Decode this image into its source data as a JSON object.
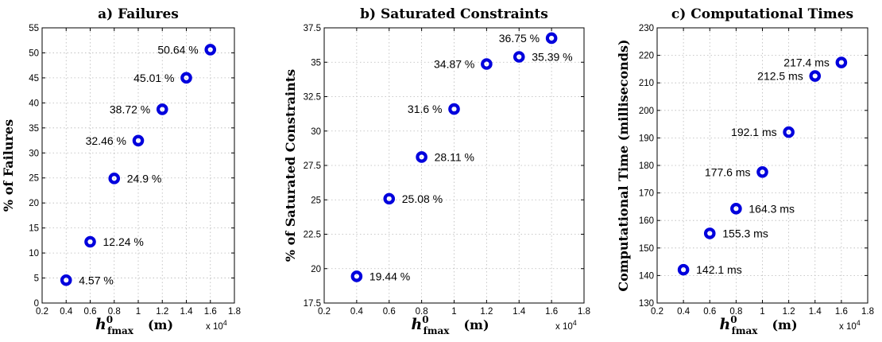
{
  "figure": {
    "x_multiplier": "x 10",
    "x_multiplier_exp": "4"
  },
  "chart_data": [
    {
      "type": "scatter",
      "title": "a)  Failures",
      "xlabel_main": "h",
      "xlabel_sup": "0",
      "xlabel_sub": "fmax",
      "xlabel_unit": "(m)",
      "ylabel": "%  of Failures",
      "xlim": [
        0.2,
        1.8
      ],
      "ylim": [
        0,
        55
      ],
      "xticks": [
        0.2,
        0.4,
        0.6,
        0.8,
        1,
        1.2,
        1.4,
        1.6,
        1.8
      ],
      "xtick_labels": [
        "0.2",
        "0.4",
        "0.6",
        "0.8",
        "1",
        "1.2",
        "1.4",
        "1.6",
        "1.8"
      ],
      "yticks": [
        0,
        5,
        10,
        15,
        20,
        25,
        30,
        35,
        40,
        45,
        50,
        55
      ],
      "ytick_labels": [
        "0",
        "5",
        "10",
        "15",
        "20",
        "25",
        "30",
        "35",
        "40",
        "45",
        "50",
        "55"
      ],
      "x": [
        0.4,
        0.6,
        0.8,
        1.0,
        1.2,
        1.4,
        1.6
      ],
      "y": [
        4.57,
        12.24,
        24.9,
        32.46,
        38.72,
        45.01,
        50.64
      ],
      "labels": [
        "4.57 %",
        "12.24 %",
        "24.9 %",
        "32.46 %",
        "38.72 %",
        "45.01 %",
        "50.64 %"
      ],
      "label_sides": [
        "right",
        "right",
        "right",
        "left",
        "left",
        "left",
        "left"
      ],
      "grid": true,
      "marker_color": "#0000dd"
    },
    {
      "type": "scatter",
      "title": "b)  Saturated Constraints",
      "xlabel_main": "h",
      "xlabel_sup": "0",
      "xlabel_sub": "fmax",
      "xlabel_unit": "(m)",
      "ylabel": "%  of Saturated Constraints",
      "xlim": [
        0.2,
        1.8
      ],
      "ylim": [
        17.5,
        37.5
      ],
      "xticks": [
        0.2,
        0.4,
        0.6,
        0.8,
        1,
        1.2,
        1.4,
        1.6,
        1.8
      ],
      "xtick_labels": [
        "0.2",
        "0.4",
        "0.6",
        "0.8",
        "1",
        "1.2",
        "1.4",
        "1.6",
        "1.8"
      ],
      "yticks": [
        17.5,
        20,
        22.5,
        25,
        27.5,
        30,
        32.5,
        35,
        37.5
      ],
      "ytick_labels": [
        "17.5",
        "20",
        "22.5",
        "25",
        "27.5",
        "30",
        "32.5",
        "35",
        "37.5"
      ],
      "x": [
        0.4,
        0.6,
        0.8,
        1.0,
        1.2,
        1.4,
        1.6
      ],
      "y": [
        19.44,
        25.08,
        28.11,
        31.6,
        34.87,
        35.39,
        36.75
      ],
      "labels": [
        "19.44 %",
        "25.08 %",
        "28.11 %",
        "31.6 %",
        "34.87 %",
        "35.39 %",
        "36.75 %"
      ],
      "label_sides": [
        "right",
        "right",
        "right",
        "left",
        "left",
        "right",
        "left"
      ],
      "grid": true,
      "marker_color": "#0000dd"
    },
    {
      "type": "scatter",
      "title": "c)  Computational Times",
      "xlabel_main": "h",
      "xlabel_sup": "0",
      "xlabel_sub": "fmax",
      "xlabel_unit": "(m)",
      "ylabel": "Computational Time (milliseconds)",
      "xlim": [
        0.2,
        1.8
      ],
      "ylim": [
        130,
        230
      ],
      "xticks": [
        0.2,
        0.4,
        0.6,
        0.8,
        1,
        1.2,
        1.4,
        1.6,
        1.8
      ],
      "xtick_labels": [
        "0.2",
        "0.4",
        "0.6",
        "0.8",
        "1",
        "1.2",
        "1.4",
        "1.6",
        "1.8"
      ],
      "yticks": [
        130,
        140,
        150,
        160,
        170,
        180,
        190,
        200,
        210,
        220,
        230
      ],
      "ytick_labels": [
        "130",
        "140",
        "150",
        "160",
        "170",
        "180",
        "190",
        "200",
        "210",
        "220",
        "230"
      ],
      "x": [
        0.4,
        0.6,
        0.8,
        1.0,
        1.2,
        1.4,
        1.6
      ],
      "y": [
        142.1,
        155.3,
        164.3,
        177.6,
        192.1,
        212.5,
        217.4
      ],
      "labels": [
        "142.1 ms",
        "155.3 ms",
        "164.3 ms",
        "177.6 ms",
        "192.1 ms",
        "212.5 ms",
        "217.4 ms"
      ],
      "label_sides": [
        "right",
        "right",
        "right",
        "left",
        "left",
        "left",
        "left"
      ],
      "grid": true,
      "marker_color": "#0000dd"
    }
  ]
}
